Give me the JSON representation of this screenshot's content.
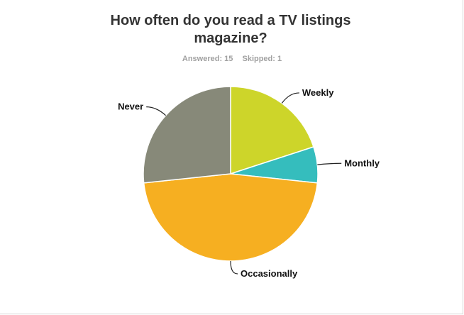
{
  "chart_data": {
    "type": "pie",
    "title": "How often do you read a TV listings magazine?",
    "answered_label": "Answered: 15",
    "skipped_label": "Skipped: 1",
    "categories": [
      "Weekly",
      "Monthly",
      "Occasionally",
      "Never"
    ],
    "values": [
      20,
      6.67,
      46.67,
      26.67
    ],
    "unit": "percent of respondents",
    "colors": [
      "#cdd52a",
      "#35bdbd",
      "#f6af21",
      "#878979"
    ]
  }
}
